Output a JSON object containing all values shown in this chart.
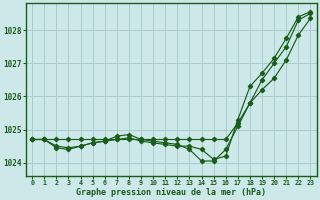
{
  "title": "Graphe pression niveau de la mer (hPa)",
  "background_color": "#cce8e8",
  "grid_color": "#aacccc",
  "line_color": "#1a5c1a",
  "xlim": [
    -0.5,
    23.5
  ],
  "ylim": [
    1023.6,
    1028.8
  ],
  "yticks": [
    1024,
    1025,
    1026,
    1027,
    1028
  ],
  "xticks": [
    0,
    1,
    2,
    3,
    4,
    5,
    6,
    7,
    8,
    9,
    10,
    11,
    12,
    13,
    14,
    15,
    16,
    17,
    18,
    19,
    20,
    21,
    22,
    23
  ],
  "series1": [
    1024.7,
    1024.7,
    1024.7,
    1024.7,
    1024.7,
    1024.7,
    1024.7,
    1024.7,
    1024.7,
    1024.7,
    1024.7,
    1024.7,
    1024.7,
    1024.7,
    1024.7,
    1024.7,
    1024.7,
    1025.2,
    1025.8,
    1026.5,
    1027.0,
    1027.5,
    1028.3,
    1028.5
  ],
  "series2": [
    1024.7,
    1024.7,
    1024.5,
    1024.45,
    1024.5,
    1024.6,
    1024.65,
    1024.7,
    1024.75,
    1024.65,
    1024.6,
    1024.55,
    1024.5,
    1024.5,
    1024.4,
    1024.1,
    1024.2,
    1025.3,
    1026.3,
    1026.7,
    1027.15,
    1027.75,
    1028.4,
    1028.55
  ],
  "series3": [
    1024.7,
    1024.7,
    1024.45,
    1024.4,
    1024.5,
    1024.6,
    1024.65,
    1024.8,
    1024.85,
    1024.7,
    1024.65,
    1024.6,
    1024.55,
    1024.4,
    1024.05,
    1024.05,
    1024.4,
    1025.1,
    1025.8,
    1026.2,
    1026.55,
    1027.1,
    1027.85,
    1028.35
  ]
}
